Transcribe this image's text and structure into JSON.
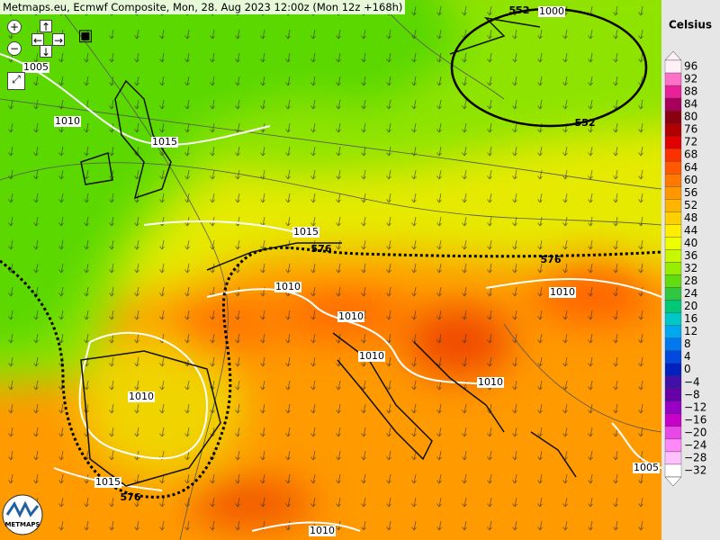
{
  "header": {
    "title": "Metmaps.eu, Ecmwf Composite, Mon, 28. Aug 2023 12:00z (Mon 12z +168h)"
  },
  "legend": {
    "title": "Celsius",
    "entries": [
      {
        "label": "96",
        "color": "#fff0f8"
      },
      {
        "label": "92",
        "color": "#ff70c8"
      },
      {
        "label": "88",
        "color": "#e8209a"
      },
      {
        "label": "84",
        "color": "#a8005a"
      },
      {
        "label": "80",
        "color": "#8a0010"
      },
      {
        "label": "76",
        "color": "#b00000"
      },
      {
        "label": "72",
        "color": "#e00000"
      },
      {
        "label": "68",
        "color": "#ff3000"
      },
      {
        "label": "64",
        "color": "#ff5800"
      },
      {
        "label": "60",
        "color": "#ff7800"
      },
      {
        "label": "56",
        "color": "#ff9800"
      },
      {
        "label": "52",
        "color": "#ffb400"
      },
      {
        "label": "48",
        "color": "#ffd000"
      },
      {
        "label": "44",
        "color": "#ffee00"
      },
      {
        "label": "40",
        "color": "#eeff00"
      },
      {
        "label": "36",
        "color": "#c8f800"
      },
      {
        "label": "32",
        "color": "#98ec00"
      },
      {
        "label": "28",
        "color": "#60dc10"
      },
      {
        "label": "24",
        "color": "#30c840"
      },
      {
        "label": "20",
        "color": "#00c878"
      },
      {
        "label": "16",
        "color": "#00c8c8"
      },
      {
        "label": "12",
        "color": "#00a8f0"
      },
      {
        "label": "8",
        "color": "#0078f0"
      },
      {
        "label": "4",
        "color": "#0048e0"
      },
      {
        "label": "0",
        "color": "#0020c0"
      },
      {
        "label": "−4",
        "color": "#4010a8"
      },
      {
        "label": "−8",
        "color": "#6800a8"
      },
      {
        "label": "−12",
        "color": "#9800c8"
      },
      {
        "label": "−16",
        "color": "#c800c8"
      },
      {
        "label": "−20",
        "color": "#e848e8"
      },
      {
        "label": "−24",
        "color": "#ff88f8"
      },
      {
        "label": "−28",
        "color": "#ffc0fc"
      },
      {
        "label": "−32",
        "color": "#ffffff"
      }
    ]
  },
  "contour_labels": [
    "1005",
    "1010",
    "1015",
    "1015",
    "576",
    "576",
    "1010",
    "1010",
    "1010",
    "1010",
    "1010",
    "1010",
    "1015",
    "576",
    "1010",
    "1005",
    "552",
    "1000",
    "552"
  ],
  "logo": {
    "text": "METMAPS"
  }
}
